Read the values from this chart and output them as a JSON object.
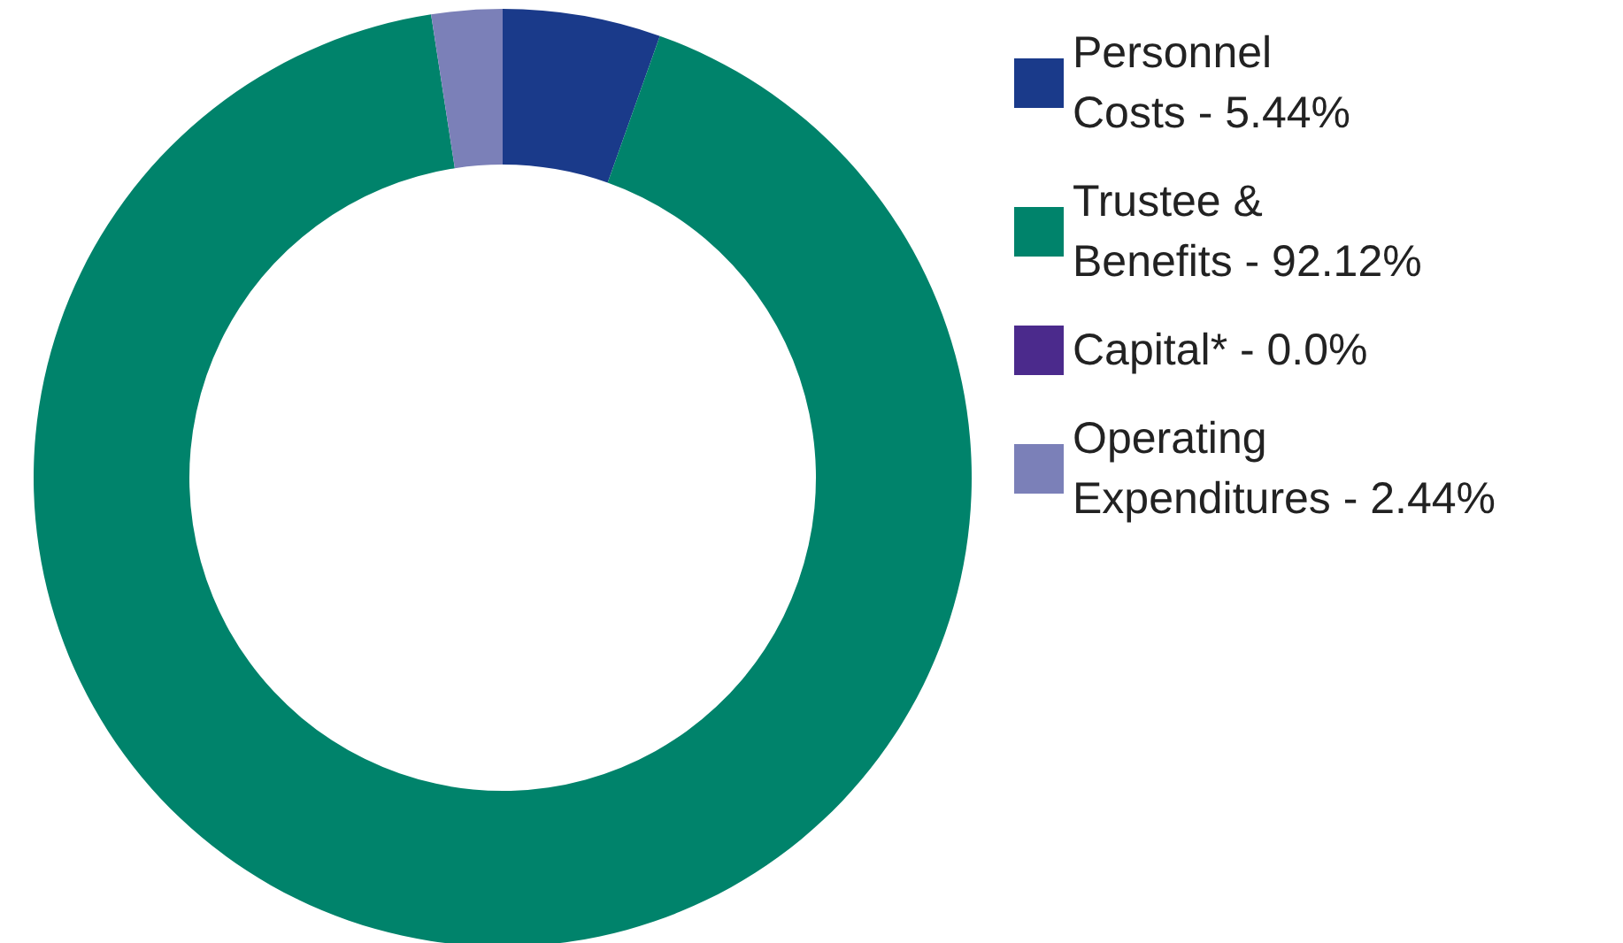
{
  "chart_data": {
    "type": "donut",
    "categories": [
      "Personnel\nCosts - 5.44%",
      "Trustee &\nBenefits - 92.12%",
      "Capital* - 0.0%",
      "Operating\nExpenditures - 2.44%"
    ],
    "values": [
      5.44,
      92.12,
      0.0,
      2.44
    ],
    "colors": [
      "#1a3a8a",
      "#00836b",
      "#4b2a8c",
      "#7b80b8"
    ],
    "legend": "right"
  }
}
